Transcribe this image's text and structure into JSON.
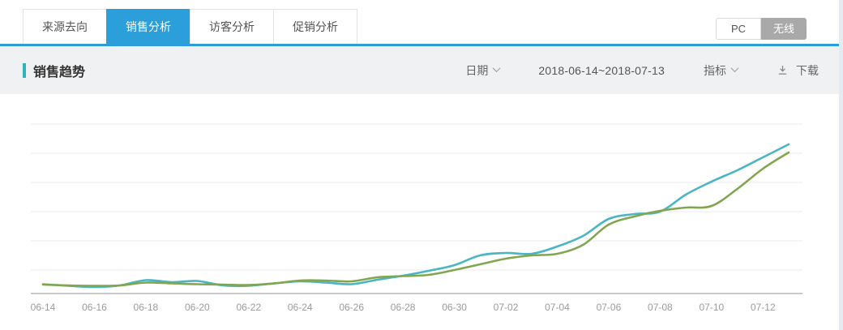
{
  "tabs": {
    "items": [
      {
        "label": "来源去向",
        "active": false
      },
      {
        "label": "销售分析",
        "active": true
      },
      {
        "label": "访客分析",
        "active": false
      },
      {
        "label": "促销分析",
        "active": false
      }
    ]
  },
  "device_toggle": {
    "pc_label": "PC",
    "wireless_label": "无线",
    "selected": "无线"
  },
  "section": {
    "title": "销售趋势",
    "date_filter_label": "日期",
    "date_range": "2018-06-14~2018-07-13",
    "metric_filter_label": "指标",
    "download_label": "下载"
  },
  "colors": {
    "accent_blue": "#2b9fd9",
    "accent_teal": "#2ab6bc",
    "toggle_gray": "#a9a9a9",
    "grid_line": "#ebebeb",
    "axis_line": "#c9c9c9",
    "tick_text": "#9b9b9b"
  },
  "chart_data": {
    "type": "line",
    "title": "销售趋势",
    "xlabel": "",
    "ylabel": "",
    "x": [
      "06-14",
      "06-15",
      "06-16",
      "06-17",
      "06-18",
      "06-19",
      "06-20",
      "06-21",
      "06-22",
      "06-23",
      "06-24",
      "06-25",
      "06-26",
      "06-27",
      "06-28",
      "06-29",
      "06-30",
      "07-01",
      "07-02",
      "07-03",
      "07-04",
      "07-05",
      "07-06",
      "07-07",
      "07-08",
      "07-09",
      "07-10",
      "07-11",
      "07-12",
      "07-13"
    ],
    "x_tick_labels": [
      "06-14",
      "06-16",
      "06-18",
      "06-20",
      "06-22",
      "06-24",
      "06-26",
      "06-28",
      "06-30",
      "07-02",
      "07-04",
      "07-06",
      "07-08",
      "07-10",
      "07-12"
    ],
    "series": [
      {
        "name": "series-teal",
        "color": "#4ab5c3",
        "values": [
          11.5,
          9.5,
          8,
          10,
          16.5,
          14,
          15.5,
          10,
          9.5,
          12.5,
          15,
          13.5,
          11.5,
          17,
          22,
          28,
          35,
          47,
          50,
          49,
          58,
          71,
          92,
          98,
          101,
          122,
          138,
          152,
          168,
          184
        ]
      },
      {
        "name": "series-green",
        "color": "#82a650",
        "values": [
          11,
          10,
          9.5,
          10,
          13.5,
          12.5,
          11.5,
          11,
          10.5,
          12.5,
          16,
          16,
          15,
          20,
          21.5,
          23,
          29,
          36,
          43,
          47,
          49,
          60,
          85,
          95,
          102,
          106,
          108,
          129,
          154,
          174
        ]
      }
    ],
    "ylim": [
      0,
      210
    ],
    "y_axis_labels_visible": false,
    "grid": "horizontal",
    "legend": "none"
  }
}
